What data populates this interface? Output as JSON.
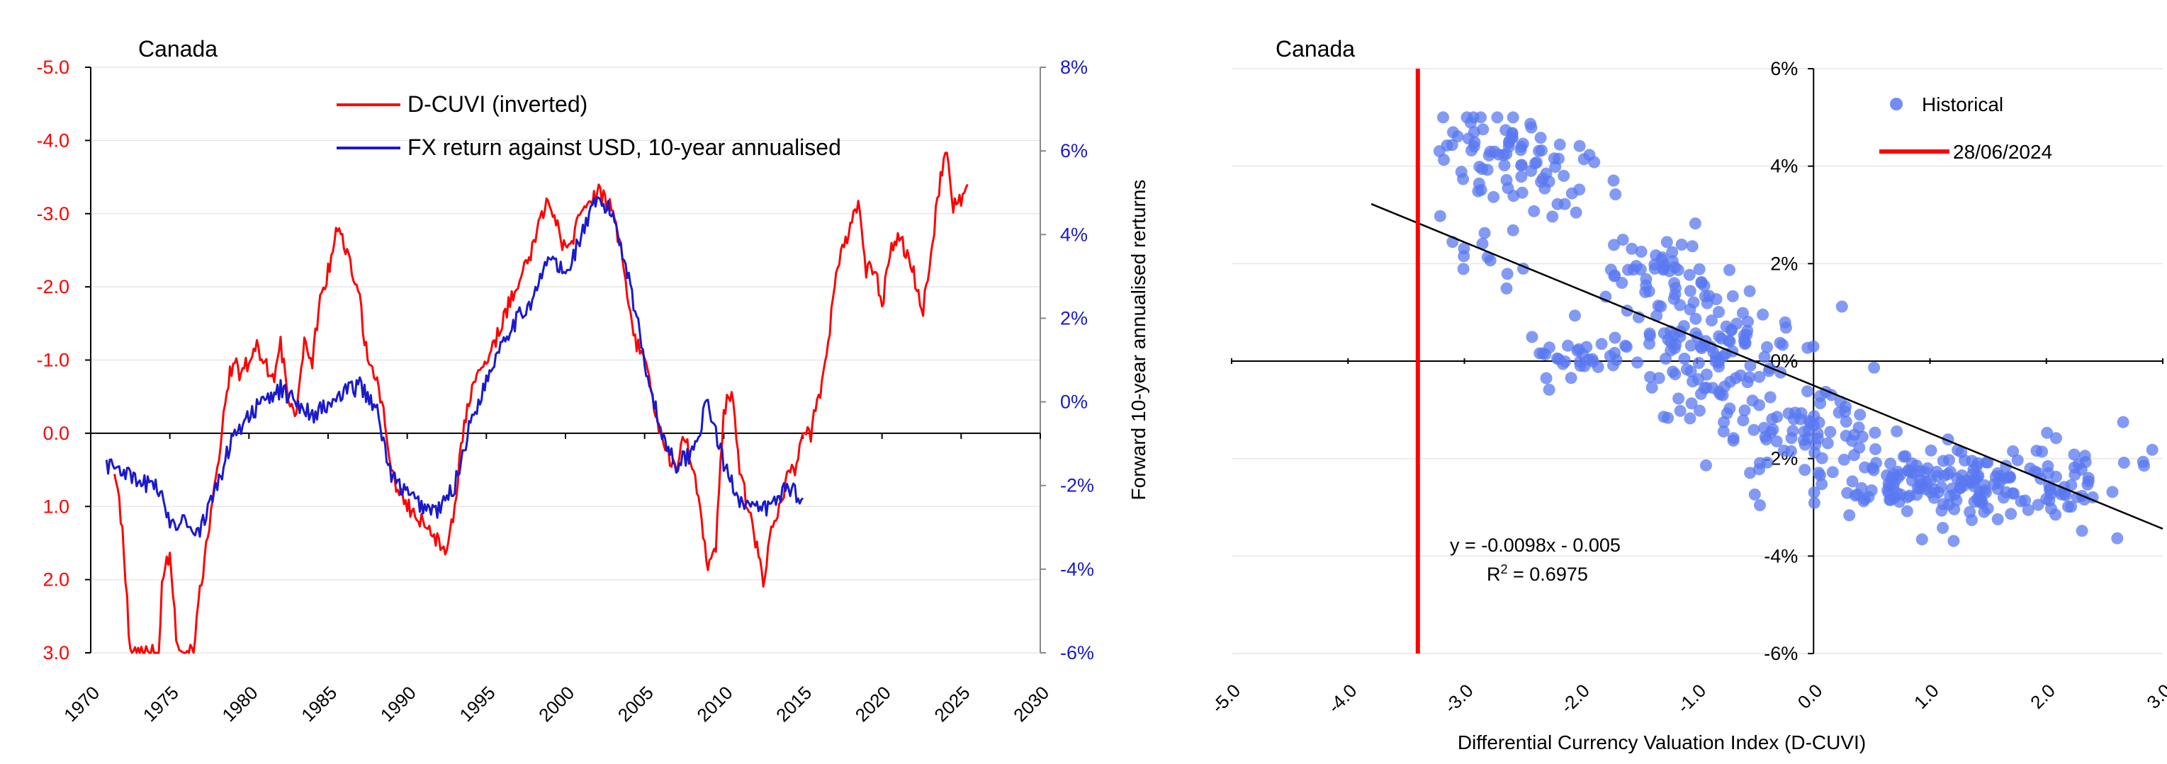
{
  "colors": {
    "red": "#ff0000",
    "blue": "#1a1acc",
    "scatter": "#5a78f0",
    "axis": "#000000",
    "grid": "#e6e6e6",
    "secondary_axis": "#888888"
  },
  "chart_data": [
    {
      "id": "left",
      "type": "line",
      "title": "Canada",
      "x_ticks": [
        "1970",
        "1975",
        "1980",
        "1985",
        "1990",
        "1995",
        "2000",
        "2005",
        "2010",
        "2015",
        "2020",
        "2025",
        "2030"
      ],
      "xlim": [
        1970,
        2030
      ],
      "y_left": {
        "ticks": [
          "-5.0",
          "-4.0",
          "-3.0",
          "-2.0",
          "-1.0",
          "0.0",
          "1.0",
          "2.0",
          "3.0"
        ],
        "range": [
          -5,
          3
        ],
        "inverted": true,
        "color": "red"
      },
      "y_right": {
        "ticks": [
          "8%",
          "6%",
          "4%",
          "2%",
          "0%",
          "-2%",
          "-4%",
          "-6%"
        ],
        "range": [
          -6,
          8
        ],
        "color": "blue"
      },
      "legend_position": "top-center",
      "series": [
        {
          "name": "D-CUVI (inverted)",
          "axis": "left",
          "color": "red",
          "points": [
            [
              1971.5,
              0.5
            ],
            [
              1972.0,
              1.3
            ],
            [
              1972.5,
              3.0
            ],
            [
              1973.5,
              3.0
            ],
            [
              1974.3,
              3.0
            ],
            [
              1974.5,
              2.0
            ],
            [
              1975.0,
              1.6
            ],
            [
              1975.5,
              3.0
            ],
            [
              1976.5,
              3.0
            ],
            [
              1977.0,
              2.0
            ],
            [
              1977.5,
              1.3
            ],
            [
              1978.0,
              0.5
            ],
            [
              1978.5,
              -0.5
            ],
            [
              1979.0,
              -1.0
            ],
            [
              1979.5,
              -0.8
            ],
            [
              1980.0,
              -1.0
            ],
            [
              1980.5,
              -1.2
            ],
            [
              1981.0,
              -1.0
            ],
            [
              1981.5,
              -0.7
            ],
            [
              1982.0,
              -1.2
            ],
            [
              1982.5,
              -0.5
            ],
            [
              1983.0,
              -0.3
            ],
            [
              1983.5,
              -1.2
            ],
            [
              1984.0,
              -1.0
            ],
            [
              1984.5,
              -1.8
            ],
            [
              1985.0,
              -2.2
            ],
            [
              1985.5,
              -2.8
            ],
            [
              1986.0,
              -2.6
            ],
            [
              1986.5,
              -2.2
            ],
            [
              1987.0,
              -1.8
            ],
            [
              1987.5,
              -1.0
            ],
            [
              1988.0,
              -0.8
            ],
            [
              1988.5,
              -0.3
            ],
            [
              1989.0,
              0.5
            ],
            [
              1989.5,
              0.8
            ],
            [
              1990.0,
              1.0
            ],
            [
              1990.5,
              1.1
            ],
            [
              1991.0,
              1.2
            ],
            [
              1991.5,
              1.3
            ],
            [
              1992.0,
              1.5
            ],
            [
              1992.5,
              1.6
            ],
            [
              1993.0,
              1.0
            ],
            [
              1993.5,
              0.0
            ],
            [
              1994.0,
              -0.5
            ],
            [
              1994.5,
              -0.8
            ],
            [
              1995.0,
              -1.0
            ],
            [
              1995.5,
              -1.2
            ],
            [
              1996.0,
              -1.5
            ],
            [
              1996.5,
              -1.8
            ],
            [
              1997.0,
              -2.0
            ],
            [
              1997.5,
              -2.3
            ],
            [
              1998.0,
              -2.6
            ],
            [
              1998.5,
              -3.0
            ],
            [
              1999.0,
              -3.2
            ],
            [
              1999.5,
              -2.8
            ],
            [
              2000.0,
              -2.5
            ],
            [
              2000.5,
              -2.7
            ],
            [
              2001.0,
              -3.0
            ],
            [
              2001.5,
              -3.1
            ],
            [
              2002.0,
              -3.3
            ],
            [
              2002.5,
              -3.2
            ],
            [
              2003.0,
              -3.0
            ],
            [
              2003.5,
              -2.5
            ],
            [
              2004.0,
              -1.8
            ],
            [
              2004.5,
              -1.2
            ],
            [
              2005.0,
              -1.0
            ],
            [
              2005.5,
              -0.5
            ],
            [
              2006.0,
              0.0
            ],
            [
              2006.5,
              0.3
            ],
            [
              2007.0,
              0.5
            ],
            [
              2007.5,
              0.0
            ],
            [
              2008.0,
              0.4
            ],
            [
              2008.5,
              1.0
            ],
            [
              2009.0,
              1.8
            ],
            [
              2009.5,
              1.5
            ],
            [
              2010.0,
              -0.3
            ],
            [
              2010.5,
              -0.6
            ],
            [
              2011.0,
              0.5
            ],
            [
              2011.5,
              1.0
            ],
            [
              2012.0,
              1.5
            ],
            [
              2012.5,
              2.0
            ],
            [
              2013.0,
              1.3
            ],
            [
              2013.5,
              1.0
            ],
            [
              2014.0,
              0.6
            ],
            [
              2014.5,
              0.5
            ],
            [
              2015.0,
              -0.1
            ],
            [
              2015.5,
              0.0
            ],
            [
              2016.0,
              -0.5
            ],
            [
              2016.5,
              -1.0
            ],
            [
              2017.0,
              -2.0
            ],
            [
              2017.5,
              -2.5
            ],
            [
              2018.0,
              -2.8
            ],
            [
              2018.5,
              -3.1
            ],
            [
              2019.0,
              -2.2
            ],
            [
              2019.5,
              -2.3
            ],
            [
              2020.0,
              -1.7
            ],
            [
              2020.5,
              -2.5
            ],
            [
              2021.0,
              -2.7
            ],
            [
              2021.5,
              -2.5
            ],
            [
              2022.0,
              -2.2
            ],
            [
              2022.5,
              -1.6
            ],
            [
              2023.0,
              -2.2
            ],
            [
              2023.5,
              -3.2
            ],
            [
              2024.0,
              -3.9
            ],
            [
              2024.5,
              -3.1
            ],
            [
              2025.0,
              -3.2
            ],
            [
              2025.4,
              -3.4
            ]
          ]
        },
        {
          "name": "FX return against USD, 10-year annualised",
          "axis": "right",
          "color": "blue",
          "points": [
            [
              1971.0,
              -1.5
            ],
            [
              1972.0,
              -1.6
            ],
            [
              1973.0,
              -2.0
            ],
            [
              1974.0,
              -1.9
            ],
            [
              1975.0,
              -2.8
            ],
            [
              1975.5,
              -2.9
            ],
            [
              1976.0,
              -2.7
            ],
            [
              1976.5,
              -3.2
            ],
            [
              1977.0,
              -3.0
            ],
            [
              1978.0,
              -2.0
            ],
            [
              1979.0,
              -0.8
            ],
            [
              1980.0,
              -0.3
            ],
            [
              1981.0,
              0.0
            ],
            [
              1982.0,
              0.3
            ],
            [
              1983.0,
              0.0
            ],
            [
              1984.0,
              -0.3
            ],
            [
              1985.0,
              -0.1
            ],
            [
              1986.0,
              0.2
            ],
            [
              1987.0,
              0.4
            ],
            [
              1988.0,
              -0.1
            ],
            [
              1989.0,
              -1.8
            ],
            [
              1990.0,
              -2.2
            ],
            [
              1991.0,
              -2.5
            ],
            [
              1992.0,
              -2.6
            ],
            [
              1993.0,
              -2.0
            ],
            [
              1994.0,
              -0.5
            ],
            [
              1995.0,
              0.5
            ],
            [
              1996.0,
              1.5
            ],
            [
              1997.0,
              2.0
            ],
            [
              1998.0,
              2.5
            ],
            [
              1999.0,
              3.5
            ],
            [
              2000.0,
              3.0
            ],
            [
              2001.0,
              4.0
            ],
            [
              2002.0,
              4.8
            ],
            [
              2003.0,
              4.5
            ],
            [
              2004.0,
              3.0
            ],
            [
              2005.0,
              1.0
            ],
            [
              2006.0,
              -0.7
            ],
            [
              2007.0,
              -1.5
            ],
            [
              2008.0,
              -1.2
            ],
            [
              2009.0,
              0.0
            ],
            [
              2010.0,
              -1.5
            ],
            [
              2011.0,
              -2.3
            ],
            [
              2012.0,
              -2.6
            ],
            [
              2013.0,
              -2.5
            ],
            [
              2014.0,
              -2.0
            ],
            [
              2015.0,
              -2.3
            ]
          ]
        }
      ]
    },
    {
      "id": "right",
      "type": "scatter",
      "title": "Canada",
      "xlabel": "Differential Currency Valuation Index (D-CUVI)",
      "ylabel": "Forward 10-year annualised rerturns",
      "x_ticks": [
        "-5.0",
        "-4.0",
        "-3.0",
        "-2.0",
        "-1.0",
        "0.0",
        "1.0",
        "2.0",
        "3.0"
      ],
      "xlim": [
        -5,
        3
      ],
      "y_ticks": [
        "6%",
        "4%",
        "2%",
        "0%",
        "-2%",
        "-4%",
        "-6%"
      ],
      "ylim": [
        -6,
        6
      ],
      "legend_position": "top-right",
      "legend": [
        {
          "label": "Historical",
          "marker": "circle"
        },
        {
          "label": "28/06/2024",
          "marker": "line"
        }
      ],
      "trendline": {
        "slope": -0.0098,
        "intercept": -0.005,
        "x_range": [
          -3.8,
          3.0
        ]
      },
      "annotation_equation": "y = -0.0098x - 0.005",
      "annotation_r2_label": "R",
      "annotation_r2_exp": "2",
      "annotation_r2_value": " = 0.6975",
      "current_x": -3.4,
      "clusters": [
        {
          "cx": -2.8,
          "cy": 4.4,
          "sx": 0.25,
          "sy": 0.45,
          "n": 55
        },
        {
          "cx": -2.3,
          "cy": 3.6,
          "sx": 0.25,
          "sy": 0.4,
          "n": 30
        },
        {
          "cx": -2.9,
          "cy": 2.1,
          "sx": 0.25,
          "sy": 0.3,
          "n": 12
        },
        {
          "cx": -2.0,
          "cy": 0.1,
          "sx": 0.3,
          "sy": 0.25,
          "n": 30
        },
        {
          "cx": -1.3,
          "cy": 1.7,
          "sx": 0.25,
          "sy": 0.45,
          "n": 55
        },
        {
          "cx": -0.8,
          "cy": 0.0,
          "sx": 0.35,
          "sy": 0.6,
          "n": 110
        },
        {
          "cx": -0.1,
          "cy": -1.5,
          "sx": 0.4,
          "sy": 0.6,
          "n": 80
        },
        {
          "cx": 1.2,
          "cy": -2.5,
          "sx": 0.45,
          "sy": 0.4,
          "n": 160
        },
        {
          "cx": 2.2,
          "cy": -2.8,
          "sx": 0.35,
          "sy": 0.4,
          "n": 25
        },
        {
          "cx": 2.8,
          "cy": -2.2,
          "sx": 0.1,
          "sy": 0.6,
          "n": 5
        }
      ]
    }
  ]
}
